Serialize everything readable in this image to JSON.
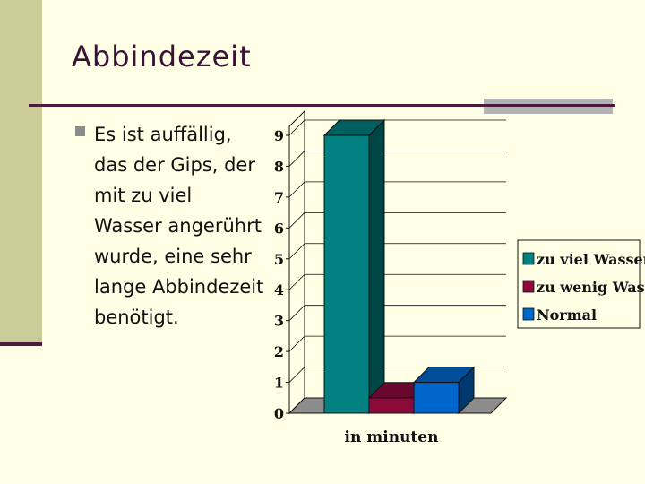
{
  "slide": {
    "title": "Abbindezeit",
    "bullet": "Es ist auffällig, das der Gips, der mit zu viel Wasser angerührt wurde, eine sehr lange Abbindezeit benötigt."
  },
  "chart_data": {
    "type": "bar",
    "categories": [
      "in minuten"
    ],
    "xlabel": "in minuten",
    "ylabel": "",
    "ylim": [
      0,
      9
    ],
    "yticks": [
      "0",
      "1",
      "2",
      "3",
      "4",
      "5",
      "6",
      "7",
      "8",
      "9"
    ],
    "grid": true,
    "legend_position": "right",
    "series": [
      {
        "name": "zu viel Wasser",
        "values": [
          9
        ],
        "color": "#008080"
      },
      {
        "name": "zu wenig Wasser",
        "values": [
          0.5
        ],
        "color": "#8B0A3A"
      },
      {
        "name": "Normal",
        "values": [
          1
        ],
        "color": "#0066CC"
      }
    ]
  }
}
